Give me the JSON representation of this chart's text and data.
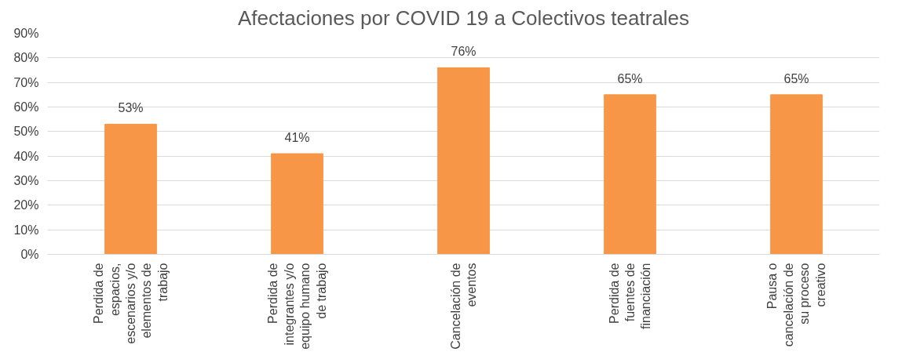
{
  "chart_data": {
    "type": "bar",
    "title": "Afectaciones por COVID 19 a Colectivos teatrales",
    "categories": [
      "Perdida de\nespacios,\nescenarios y/o\nelementos de\ntrabajo",
      "Perdida de\nintegrantes y/o\nequipo humano\nde trabajo",
      "Cancelación de\neventos",
      "Perdida de\nfuentes de\nfinanciación",
      "Pausa o\ncancelación de\nsu proceso\ncreativo"
    ],
    "values": [
      53,
      41,
      76,
      65,
      65
    ],
    "value_labels": [
      "53%",
      "41%",
      "76%",
      "65%",
      "65%"
    ],
    "color": "#f79646",
    "ylim": [
      0,
      90
    ],
    "yticks": [
      {
        "value": 0,
        "label": "0%"
      },
      {
        "value": 10,
        "label": "10%"
      },
      {
        "value": 20,
        "label": "20%"
      },
      {
        "value": 30,
        "label": "30%"
      },
      {
        "value": 40,
        "label": "40%"
      },
      {
        "value": 50,
        "label": "50%"
      },
      {
        "value": 60,
        "label": "60%"
      },
      {
        "value": 70,
        "label": "70%"
      },
      {
        "value": 80,
        "label": "80%"
      },
      {
        "value": 90,
        "label": "90%"
      }
    ],
    "grid": "y"
  }
}
